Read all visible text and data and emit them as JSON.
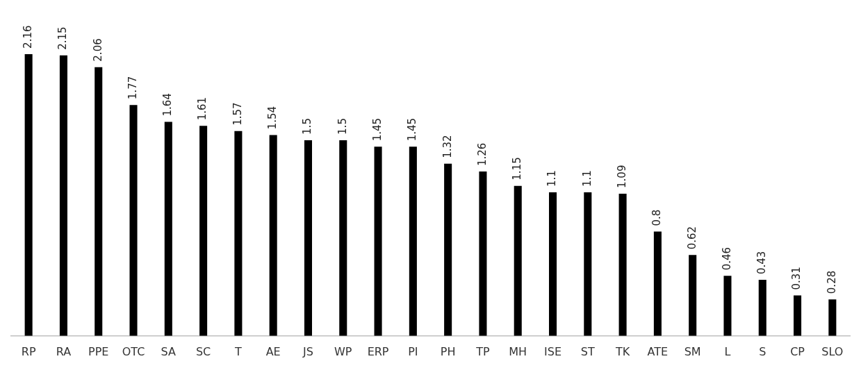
{
  "chart_data": {
    "type": "bar",
    "categories": [
      "RP",
      "RA",
      "PPE",
      "OTC",
      "SA",
      "SC",
      "T",
      "AE",
      "JS",
      "WP",
      "ERP",
      "PI",
      "PH",
      "TP",
      "MH",
      "ISE",
      "ST",
      "TK",
      "ATE",
      "SM",
      "L",
      "S",
      "CP",
      "SLO"
    ],
    "values": [
      2.16,
      2.15,
      2.06,
      1.77,
      1.64,
      1.61,
      1.57,
      1.54,
      1.5,
      1.5,
      1.45,
      1.45,
      1.32,
      1.26,
      1.15,
      1.1,
      1.1,
      1.09,
      0.8,
      0.62,
      0.46,
      0.43,
      0.31,
      0.28
    ],
    "color": "#000000",
    "data_labels": true,
    "grid": false,
    "legend": false
  }
}
